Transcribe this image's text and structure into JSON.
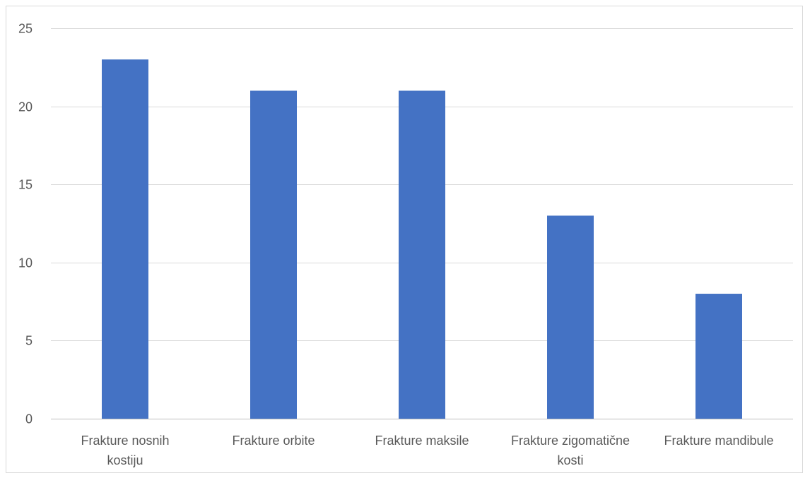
{
  "chart_data": {
    "type": "bar",
    "categories": [
      [
        "Frakture nosnih",
        "kostiju"
      ],
      [
        "Frakture orbite"
      ],
      [
        "Frakture maksile"
      ],
      [
        "Frakture zigomatične",
        "kosti"
      ],
      [
        "Frakture mandibule"
      ]
    ],
    "values": [
      23,
      21,
      21,
      13,
      8
    ],
    "ylim": [
      0,
      25
    ],
    "yticks": [
      0,
      5,
      10,
      15,
      20,
      25
    ],
    "grid": true,
    "legend": "none",
    "colors": {
      "bar": "#4472c4",
      "grid": "#d9d9d9",
      "text": "#595959"
    }
  }
}
